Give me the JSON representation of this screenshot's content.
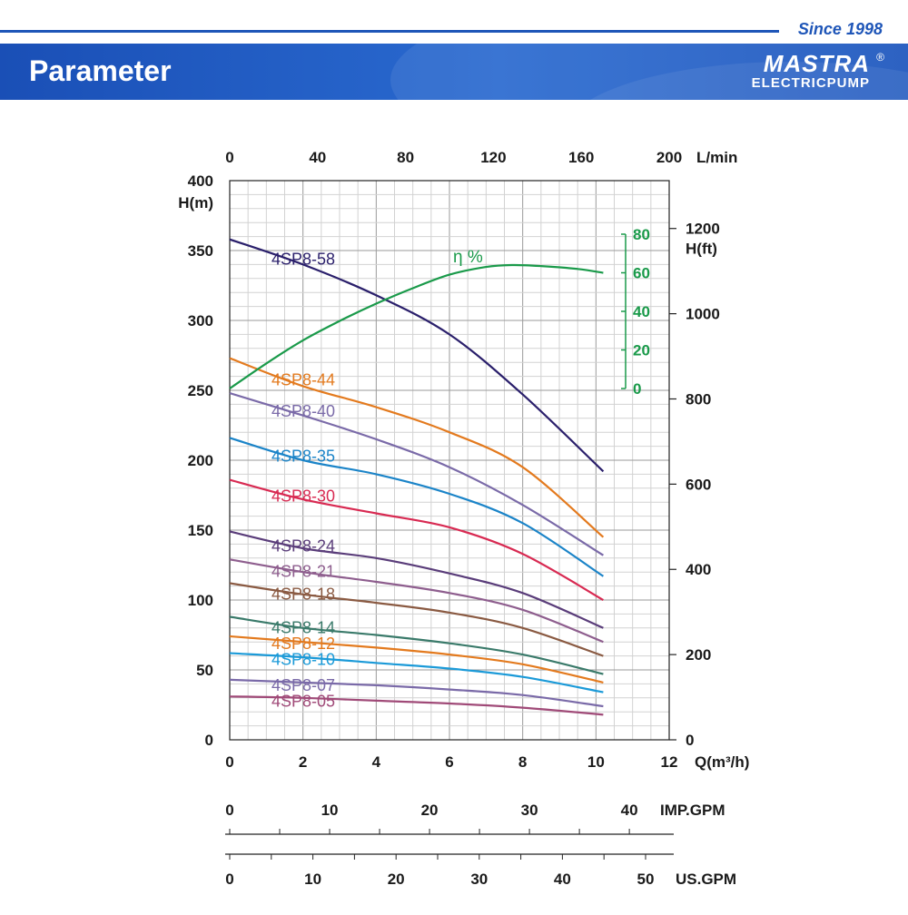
{
  "header": {
    "since": "Since 1998",
    "title": "Parameter",
    "brand": "MASTRA",
    "brand_sub": "ELECTRICPUMP",
    "registered": "®"
  },
  "chart_data": {
    "type": "line",
    "xlabel": "Q(m³/h)",
    "ylabel": "H(m)",
    "y2label": "H(ft)",
    "top_axis_label": "L/min",
    "eff_label": "η %",
    "xlim": [
      0,
      12
    ],
    "ylim": [
      0,
      400
    ],
    "x_ticks": [
      0,
      2,
      4,
      6,
      8,
      10,
      12
    ],
    "y_ticks": [
      0,
      50,
      100,
      150,
      200,
      250,
      300,
      350,
      400
    ],
    "lmin_ticks": [
      0,
      40,
      80,
      120,
      160,
      200
    ],
    "hft_ticks": [
      0,
      200,
      400,
      600,
      800,
      1000,
      1200
    ],
    "eff_ticks": [
      0,
      20,
      40,
      60,
      80
    ],
    "imp_gpm_label": "IMP.GPM",
    "imp_gpm_ticks": [
      0,
      10,
      20,
      30,
      40
    ],
    "us_gpm_label": "US.GPM",
    "us_gpm_ticks": [
      0,
      10,
      20,
      30,
      40,
      50
    ],
    "grid": true,
    "series": [
      {
        "name": "4SP8-58",
        "color": "#2a1f6b",
        "x": [
          0,
          2,
          4,
          6,
          8,
          10.2
        ],
        "values": [
          358,
          340,
          318,
          290,
          247,
          192
        ]
      },
      {
        "name": "4SP8-44",
        "color": "#e37a1e",
        "x": [
          0,
          2,
          4,
          6,
          8,
          10.2
        ],
        "values": [
          273,
          253,
          238,
          220,
          195,
          145
        ]
      },
      {
        "name": "4SP8-40",
        "color": "#7a6aa8",
        "x": [
          0,
          2,
          4,
          6,
          8,
          10.2
        ],
        "values": [
          248,
          232,
          215,
          195,
          168,
          132
        ]
      },
      {
        "name": "4SP8-35",
        "color": "#1b84c8",
        "x": [
          0,
          2,
          4,
          6,
          8,
          10.2
        ],
        "values": [
          216,
          200,
          190,
          176,
          155,
          117
        ]
      },
      {
        "name": "4SP8-30",
        "color": "#d82a52",
        "x": [
          0,
          2,
          4,
          6,
          8,
          10.2
        ],
        "values": [
          186,
          172,
          162,
          152,
          133,
          100
        ]
      },
      {
        "name": "4SP8-24",
        "color": "#5a3d7a",
        "x": [
          0,
          2,
          4,
          6,
          8,
          10.2
        ],
        "values": [
          149,
          137,
          130,
          119,
          105,
          80
        ]
      },
      {
        "name": "4SP8-21",
        "color": "#8e5e8e",
        "x": [
          0,
          2,
          4,
          6,
          8,
          10.2
        ],
        "values": [
          129,
          120,
          113,
          105,
          93,
          70
        ]
      },
      {
        "name": "4SP8-18",
        "color": "#8a5a42",
        "x": [
          0,
          2,
          4,
          6,
          8,
          10.2
        ],
        "values": [
          112,
          104,
          98,
          91,
          80,
          60
        ]
      },
      {
        "name": "4SP8-14",
        "color": "#3a7a6a",
        "x": [
          0,
          2,
          4,
          6,
          8,
          10.2
        ],
        "values": [
          88,
          80,
          75,
          69,
          61,
          47
        ]
      },
      {
        "name": "4SP8-12",
        "color": "#e37a1e",
        "x": [
          0,
          2,
          4,
          6,
          8,
          10.2
        ],
        "values": [
          74,
          70,
          66,
          61,
          54,
          41
        ]
      },
      {
        "name": "4SP8-10",
        "color": "#1b9ad8",
        "x": [
          0,
          2,
          4,
          6,
          8,
          10.2
        ],
        "values": [
          62,
          59,
          55,
          51,
          45,
          34
        ]
      },
      {
        "name": "4SP8-07",
        "color": "#7a6aa8",
        "x": [
          0,
          2,
          4,
          6,
          8,
          10.2
        ],
        "values": [
          43,
          41,
          39,
          36,
          32,
          24
        ]
      },
      {
        "name": "4SP8-05",
        "color": "#a04a78",
        "x": [
          0,
          2,
          4,
          6,
          8,
          10.2
        ],
        "values": [
          31,
          30,
          28,
          26,
          23,
          18
        ]
      }
    ],
    "efficiency": {
      "color": "#1a9a4a",
      "x": [
        0,
        1,
        2,
        3,
        4,
        5,
        6,
        7,
        7.7,
        8.5,
        9.5,
        10.2
      ],
      "values": [
        0,
        13,
        25,
        35,
        44,
        52,
        59,
        63,
        64,
        63.5,
        62,
        60
      ]
    }
  }
}
